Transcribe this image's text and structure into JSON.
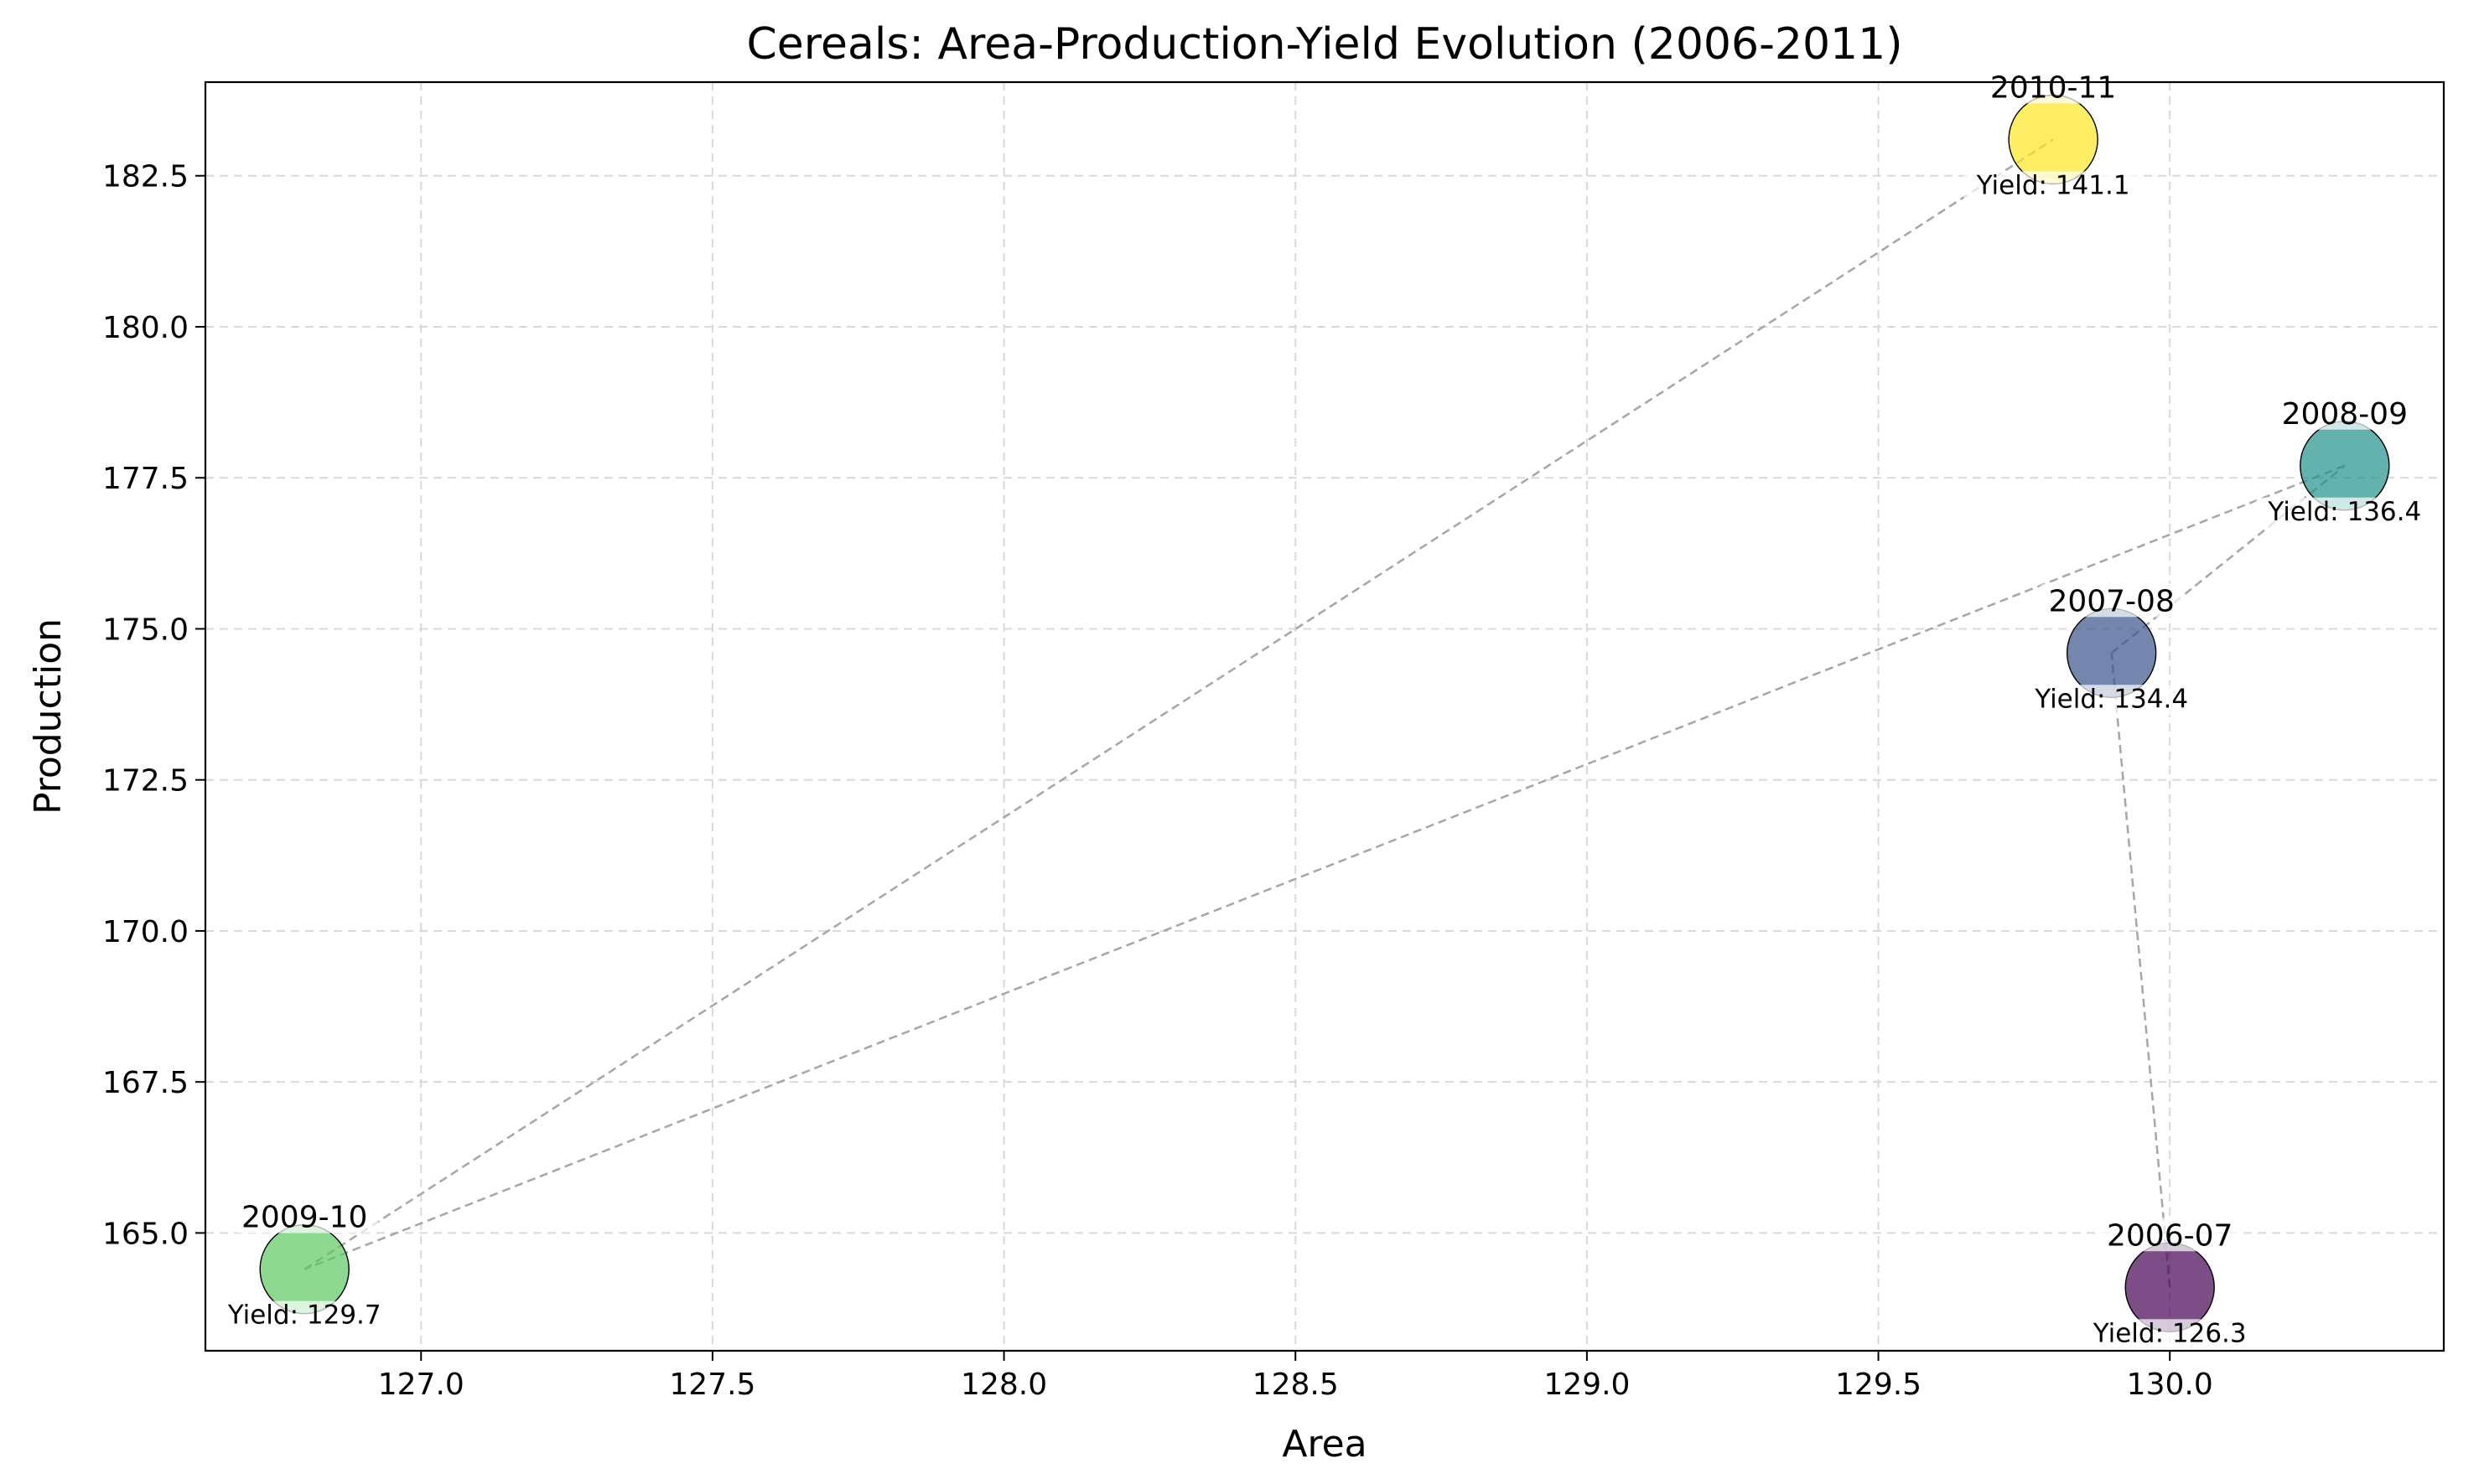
{
  "chart_data": {
    "type": "scatter",
    "title": "Cereals: Area-Production-Yield Evolution (2006-2011)",
    "xlabel": "Area",
    "ylabel": "Production",
    "xlim": [
      126.63,
      130.47
    ],
    "ylim": [
      163.05,
      184.05
    ],
    "xticks": [
      "127.0",
      "127.5",
      "128.0",
      "128.5",
      "129.0",
      "129.5",
      "130.0"
    ],
    "yticks": [
      "165.0",
      "167.5",
      "170.0",
      "172.5",
      "175.0",
      "177.5",
      "180.0",
      "182.5"
    ],
    "grid": true,
    "points": [
      {
        "label": "2006-07",
        "x": 130.0,
        "y": 164.1,
        "yield_text": "Yield: 126.3",
        "color": "#440154"
      },
      {
        "label": "2007-08",
        "x": 129.9,
        "y": 174.6,
        "yield_text": "Yield: 134.4",
        "color": "#3b528b"
      },
      {
        "label": "2008-09",
        "x": 130.3,
        "y": 177.7,
        "yield_text": "Yield: 136.4",
        "color": "#21918c"
      },
      {
        "label": "2009-10",
        "x": 126.8,
        "y": 164.4,
        "yield_text": "Yield: 129.7",
        "color": "#5ec962"
      },
      {
        "label": "2010-11",
        "x": 129.8,
        "y": 183.1,
        "yield_text": "Yield: 141.1",
        "color": "#fde725"
      }
    ]
  }
}
